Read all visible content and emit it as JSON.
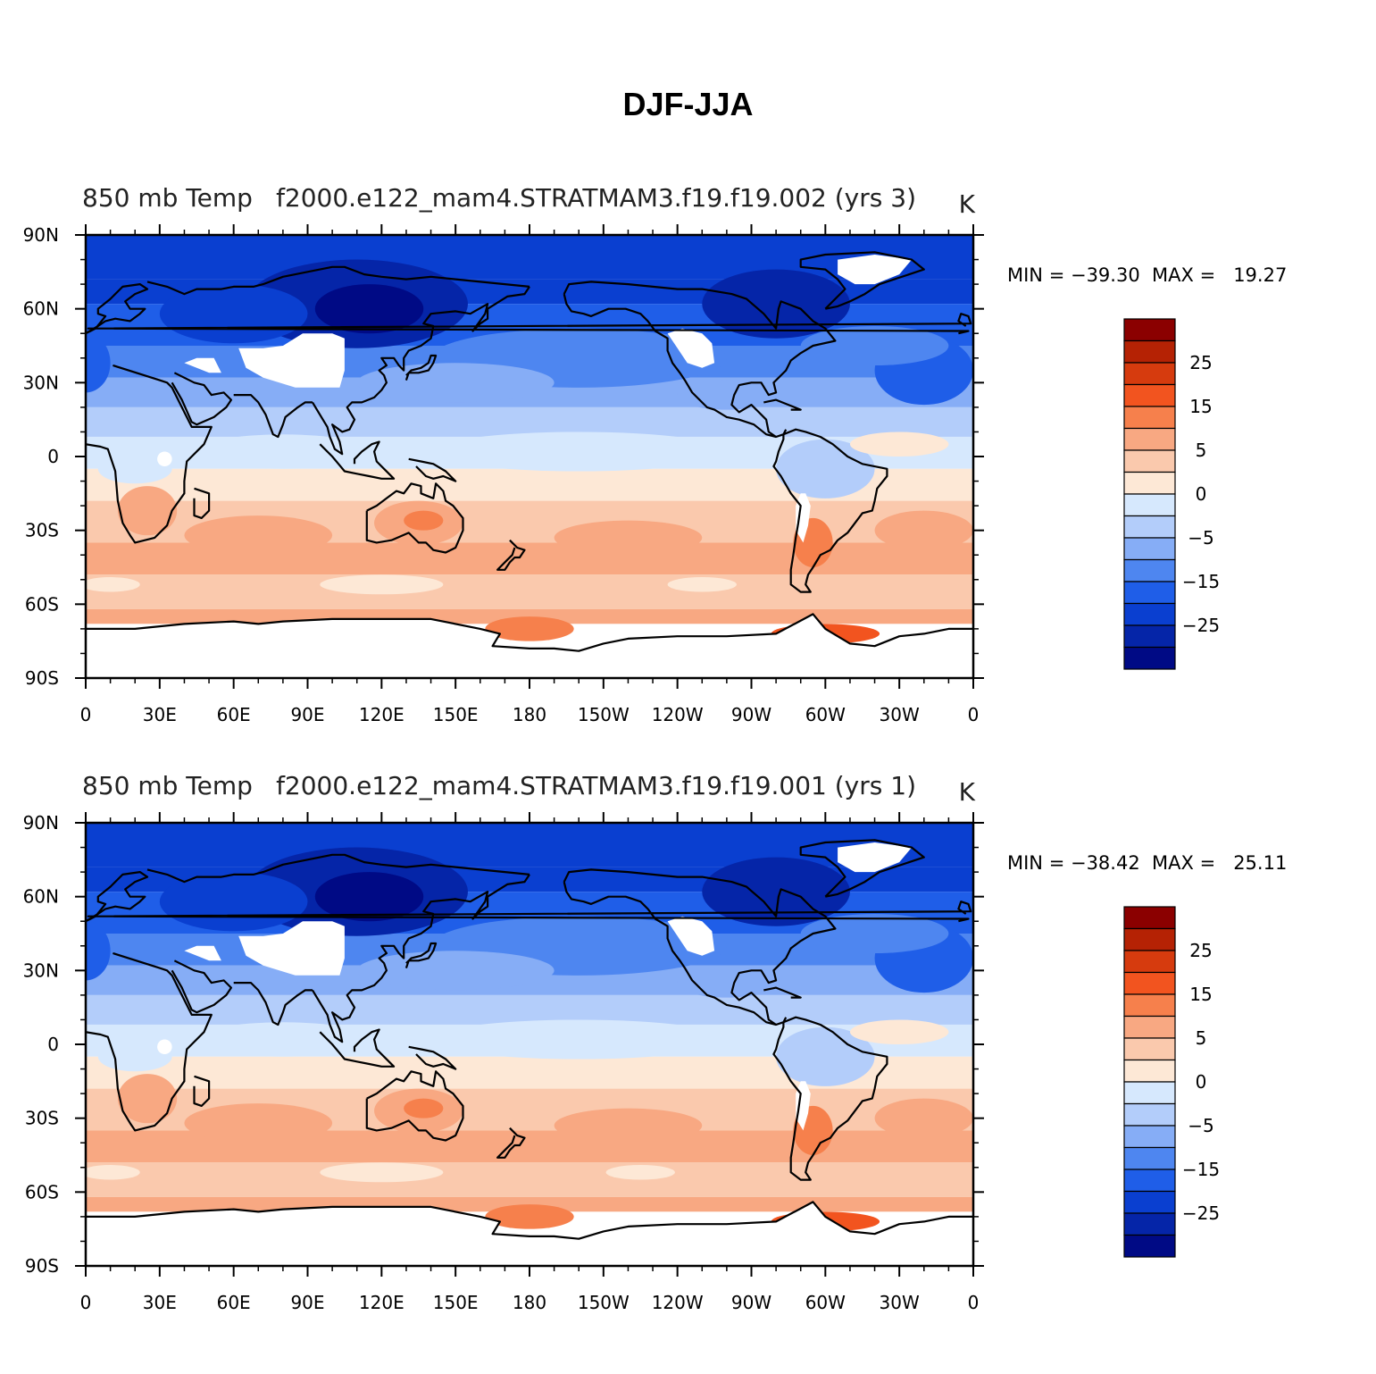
{
  "title": "DJF-JJA",
  "panels": [
    {
      "left_title": "850 mb Temp",
      "case_title": "f2000.e122_mam4.STRATMAM3.f19.f19.002 (yrs 3)",
      "units": "K",
      "stats": "MIN = −39.30  MAX =   19.27"
    },
    {
      "left_title": "850 mb Temp",
      "case_title": "f2000.e122_mam4.STRATMAM3.f19.f19.001 (yrs 1)",
      "units": "K",
      "stats": "MIN = −38.42  MAX =   25.11"
    }
  ],
  "lat_labels": [
    "90N",
    "60N",
    "30N",
    "0",
    "30S",
    "60S",
    "90S"
  ],
  "lon_labels": [
    "0",
    "30E",
    "60E",
    "90E",
    "120E",
    "150E",
    "180",
    "150W",
    "120W",
    "90W",
    "60W",
    "30W",
    "0"
  ],
  "colorbar": {
    "labels": [
      "25",
      "15",
      "5",
      "0",
      "−5",
      "−15",
      "−25"
    ],
    "colors": [
      "#8b0000",
      "#b52204",
      "#d63b0e",
      "#f2541f",
      "#f6804c",
      "#f8a882",
      "#fac9ad",
      "#fde8d6",
      "#d6e8fd",
      "#b3cdfa",
      "#86adf6",
      "#4e86f0",
      "#1f5ee8",
      "#0a3fd0",
      "#0525a8",
      "#000a85"
    ]
  }
}
